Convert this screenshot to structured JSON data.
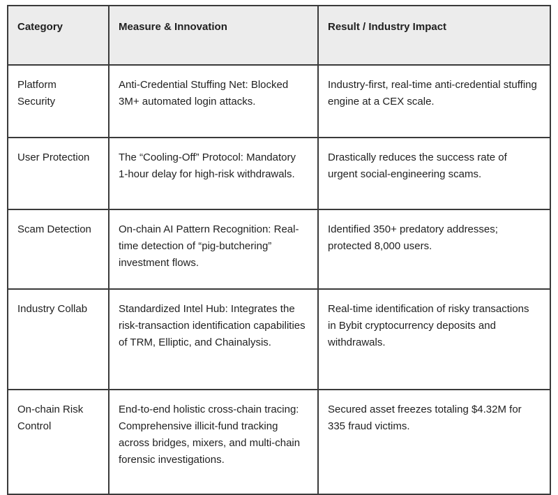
{
  "table": {
    "headers": {
      "category": "Category",
      "measure": "Measure & Innovation",
      "result": "Result / Industry Impact"
    },
    "rows": [
      {
        "category": "Platform Security",
        "measure": "Anti-Credential Stuffing Net: Blocked 3M+ automated login attacks.",
        "result": "Industry-first, real-time anti-credential stuffing engine at a CEX scale."
      },
      {
        "category": "User Protection",
        "measure": "The “Cooling-Off” Protocol: Mandatory 1-hour delay for high-risk withdrawals.",
        "result": "Drastically reduces the success rate of urgent social-engineering scams."
      },
      {
        "category": "Scam Detection",
        "measure": "On-chain AI Pattern Recognition: Real-time detection of “pig-butchering” investment flows.",
        "result": "Identified 350+ predatory addresses; protected 8,000 users."
      },
      {
        "category": "Industry Collab",
        "measure": "Standardized Intel Hub: Integrates the risk-transaction identification capabilities of TRM, Elliptic, and Chainalysis.",
        "result": "Real-time identification of risky transactions in Bybit cryptocurrency deposits and withdrawals."
      },
      {
        "category": "On-chain Risk Control",
        "measure": "End-to-end holistic cross-chain tracing:  Comprehensive illicit-fund tracking across bridges, mixers, and multi-chain forensic investigations.",
        "result": "Secured asset freezes totaling $4.32M for 335 fraud victims."
      }
    ],
    "colors": {
      "header_bg": "#ececec",
      "border": "#3a3a3a",
      "text": "#1f1f1f",
      "row_bg": "#ffffff"
    }
  }
}
